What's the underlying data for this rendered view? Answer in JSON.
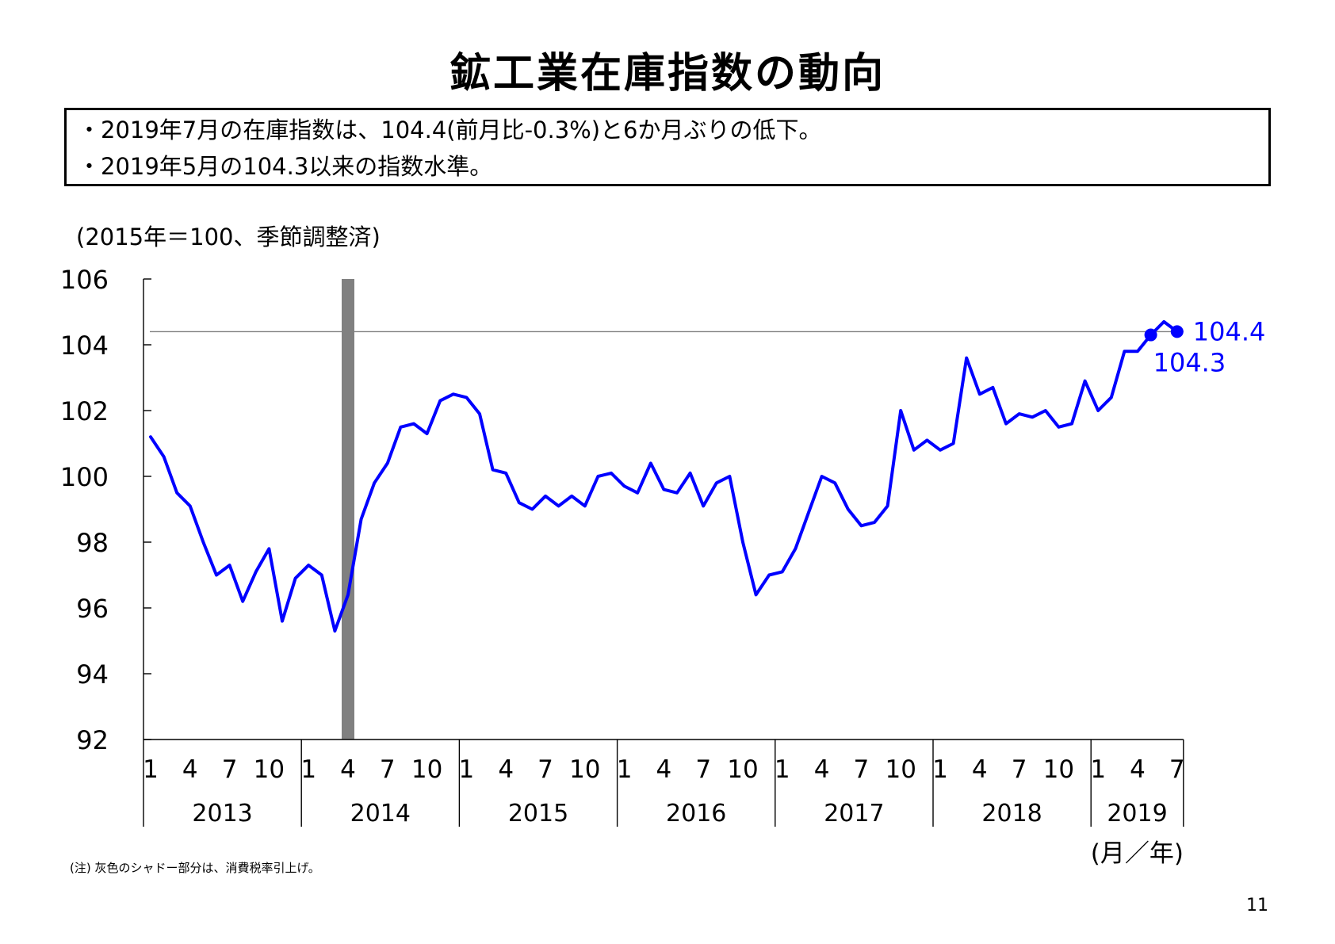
{
  "page": {
    "title": "鉱工業在庫指数の動向",
    "summary": [
      "・2019年7月の在庫指数は、104.4(前月比-0.3%)と6か月ぶりの低下。",
      "・2019年5月の104.3以来の指数水準。"
    ],
    "unit_label": "(2015年＝100、季節調整済)",
    "note": "(注) 灰色のシャドー部分は、消費税率引上げ。",
    "page_number": "11"
  },
  "chart_data": {
    "type": "line",
    "ylim": [
      92,
      106
    ],
    "yticks": [
      "92",
      "94",
      "96",
      "98",
      "100",
      "102",
      "104",
      "106"
    ],
    "x_axis_label": "(月／年)",
    "month_tick_labels": [
      "1",
      "4",
      "7",
      "10"
    ],
    "years": [
      "2013",
      "2014",
      "2015",
      "2016",
      "2017",
      "2018",
      "2019"
    ],
    "months_per_year": [
      12,
      12,
      12,
      12,
      12,
      12,
      7
    ],
    "shaded_period": {
      "start": "2014-04",
      "end": "2014-04",
      "color": "#808080"
    },
    "reference_line": {
      "value": 104.4,
      "color": "#808080"
    },
    "series": [
      {
        "color": "#0000ff",
        "start": "2013-01",
        "values": [
          101.2,
          100.6,
          99.5,
          99.1,
          98.0,
          97.0,
          97.3,
          96.2,
          97.1,
          97.8,
          95.6,
          96.9,
          97.3,
          97.0,
          95.3,
          96.4,
          98.7,
          99.8,
          100.4,
          101.5,
          101.6,
          101.3,
          102.3,
          102.5,
          102.4,
          101.9,
          100.2,
          100.1,
          99.2,
          99.0,
          99.4,
          99.1,
          99.4,
          99.1,
          100.0,
          100.1,
          99.7,
          99.5,
          100.4,
          99.6,
          99.5,
          100.1,
          99.1,
          99.8,
          100.0,
          98.0,
          96.4,
          97.0,
          97.1,
          97.8,
          98.9,
          100.0,
          99.8,
          99.0,
          98.5,
          98.6,
          99.1,
          102.0,
          100.8,
          101.1,
          100.8,
          101.0,
          103.6,
          102.5,
          102.7,
          101.6,
          101.9,
          101.8,
          102.0,
          101.5,
          101.6,
          102.9,
          102.0,
          102.4,
          103.8,
          103.8,
          104.3,
          104.7,
          104.4
        ]
      }
    ],
    "annotations": [
      {
        "period": "2019-07",
        "value": 104.4,
        "label": "104.4"
      },
      {
        "period": "2019-05",
        "value": 104.3,
        "label": "104.3"
      }
    ]
  }
}
